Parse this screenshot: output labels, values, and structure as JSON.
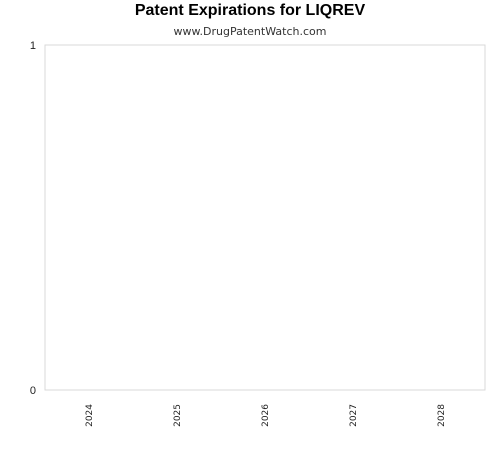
{
  "chart_data": {
    "type": "bar",
    "title": "Patent Expirations for LIQREV",
    "subtitle": "www.DrugPatentWatch.com",
    "xlabel": "",
    "ylabel": "",
    "categories": [
      "2024",
      "2025",
      "2026",
      "2027",
      "2028"
    ],
    "series": [
      {
        "values": [
          0,
          0,
          0,
          0,
          0
        ]
      }
    ],
    "ylim": [
      0,
      1
    ],
    "yticks": [
      "0",
      "1"
    ],
    "grid": false,
    "legend": "none",
    "colors": {
      "axis": "#d9d9d9",
      "bar": "#1f77b4"
    }
  }
}
